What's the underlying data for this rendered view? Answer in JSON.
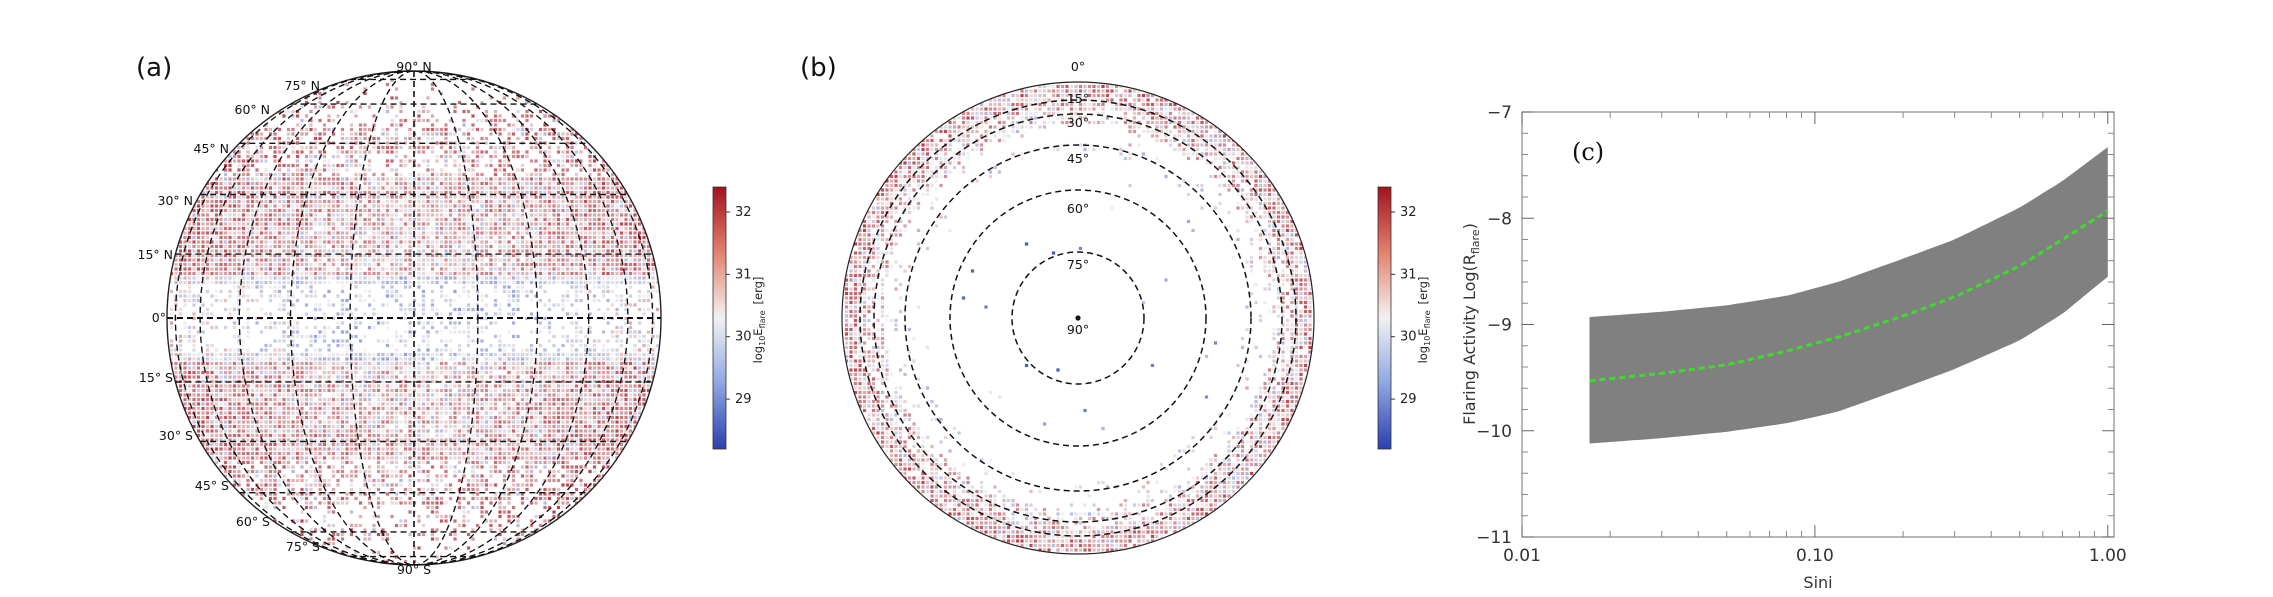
{
  "panels": {
    "a": {
      "letter": "(a)"
    },
    "b": {
      "letter": "(b)"
    },
    "c": {
      "letter": "(c)"
    }
  },
  "panel_a": {
    "label_top": "90° N",
    "label_bottom": "90° S",
    "north_labels": [
      "75° N",
      "60° N",
      "45° N",
      "30° N",
      "15° N"
    ],
    "equator_label": "0°",
    "south_labels": [
      "15° S",
      "30° S",
      "45° S",
      "60° S",
      "75° S"
    ]
  },
  "panel_b": {
    "ring_labels": [
      "0°",
      "15°",
      "30°",
      "45°",
      "60°",
      "75°",
      "90°"
    ]
  },
  "colorbar": {
    "ticks": [
      "29",
      "30",
      "31",
      "32"
    ],
    "label_math": "log",
    "label_sub": "10",
    "label_E": "E",
    "label_Esub": "flare",
    "label_unit": "[erg]",
    "range": [
      28.2,
      32.4
    ],
    "colors": {
      "low": "#2b3fae",
      "mid": "#f2f2f2",
      "high": "#a3121e"
    }
  },
  "chart_data": {
    "type": "area",
    "xlabel": "Sini",
    "ylabel_main": "Flaring Activity  Log(R",
    "ylabel_sub": "flare",
    "ylabel_end": ")",
    "x_scale": "log",
    "xlim": [
      0.01,
      1.05
    ],
    "ylim": [
      -11,
      -7
    ],
    "x_ticks": [
      0.01,
      0.1,
      1.0
    ],
    "x_tick_labels": [
      "0.01",
      "0.10",
      "1.00"
    ],
    "y_ticks": [
      -11,
      -10,
      -9,
      -8,
      -7
    ],
    "y_tick_labels": [
      "−11",
      "−10",
      "−9",
      "−8",
      "−7"
    ],
    "x": [
      0.017,
      0.03,
      0.05,
      0.08,
      0.12,
      0.2,
      0.3,
      0.5,
      0.7,
      1.0
    ],
    "series": [
      {
        "values": [
          -9.53,
          -9.46,
          -9.38,
          -9.25,
          -9.12,
          -8.92,
          -8.74,
          -8.45,
          -8.2,
          -7.93
        ]
      },
      {
        "values": [
          -10.12,
          -10.07,
          -10.01,
          -9.93,
          -9.82,
          -9.6,
          -9.42,
          -9.15,
          -8.9,
          -8.55
        ]
      },
      {
        "values": [
          -8.93,
          -8.88,
          -8.82,
          -8.73,
          -8.6,
          -8.38,
          -8.2,
          -7.9,
          -7.65,
          -7.33
        ]
      }
    ],
    "colors": {
      "band": "#808080",
      "line": "#3ddc2a"
    }
  }
}
